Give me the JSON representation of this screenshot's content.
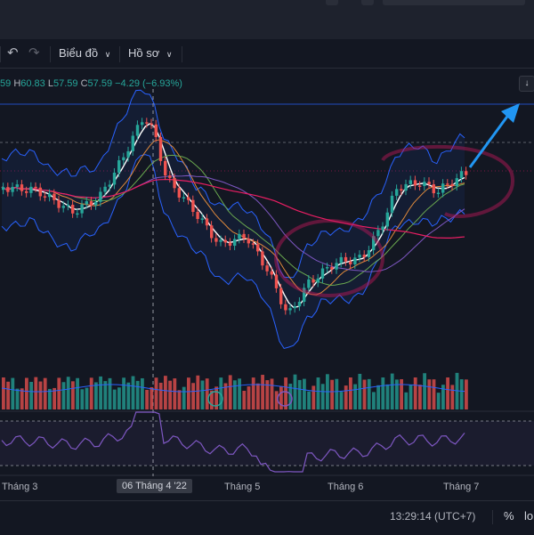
{
  "toolbar": {
    "undo_icon": "undo-icon",
    "redo_icon": "redo-icon",
    "chart_menu_label": "Biểu đồ",
    "profile_menu_label": "Hồ sơ",
    "chevron_icon": "chevron-down-icon"
  },
  "ohlc": {
    "open_value": "59",
    "high_key": "H",
    "high_value": "60.83",
    "low_key": "L",
    "low_value": "57.59",
    "close_key": "C",
    "close_value": "57.59",
    "change": "−4.29 (−6.93%)"
  },
  "scroll_button_icon": "arrow-down-icon",
  "time_axis": {
    "labels": [
      "Tháng 3",
      "06 Tháng 4 '22",
      "Tháng 5",
      "Tháng 6",
      "Tháng 7"
    ],
    "highlighted_index": 1
  },
  "statusbar": {
    "clock": "13:29:14 (UTC+7)",
    "percent_label": "%",
    "log_label": "lo"
  },
  "colors": {
    "background": "#131722",
    "up": "#26a69a",
    "down": "#ef5350",
    "ma_white": "#ffffff",
    "ma_orange": "#e08a3c",
    "ma_green": "#6aa84f",
    "ma_purple": "#7e57c2",
    "ma_red": "#e91e63",
    "bollinger": "#2962ff",
    "rsi": "#7e57c2",
    "annotation_arrow": "#2196f3",
    "annotation_circle": "#c2185b"
  }
}
